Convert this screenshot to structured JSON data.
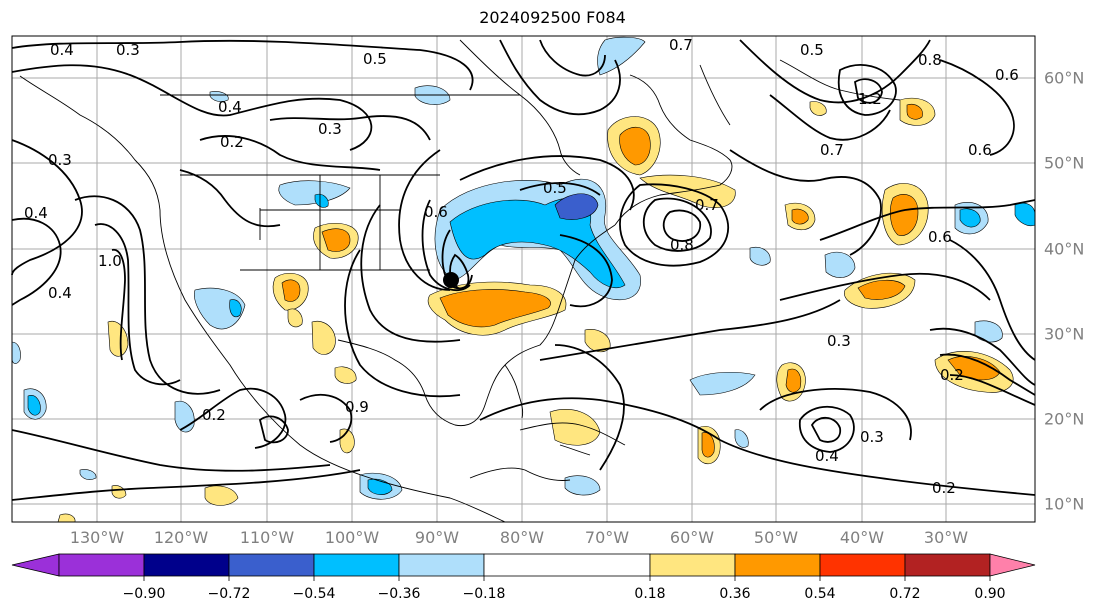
{
  "title": "2024092500 F084",
  "longitude_labels": [
    "130°W",
    "120°W",
    "110°W",
    "100°W",
    "90°W",
    "80°W",
    "70°W",
    "60°W",
    "50°W",
    "40°W",
    "30°W"
  ],
  "latitude_labels": [
    "60°N",
    "50°N",
    "40°N",
    "30°N",
    "20°N",
    "10°N"
  ],
  "contour_labels": [
    "0.4",
    "0.3",
    "0.5",
    "0.7",
    "0.5",
    "0.8",
    "0.6",
    "0.4",
    "0.2",
    "0.3",
    "1.2",
    "0.3",
    "0.7",
    "0.4",
    "1.0",
    "0.6",
    "0.5",
    "0.7",
    "0.8",
    "0.6",
    "0.4",
    "0.3",
    "0.2",
    "0.2",
    "0.3",
    "0.4",
    "0.2",
    "0.6",
    "0.9"
  ],
  "colorbar": {
    "tick_labels": [
      "−0.90",
      "−0.72",
      "−0.54",
      "−0.36",
      "−0.18",
      "0.18",
      "0.36",
      "0.54",
      "0.72",
      "0.90"
    ],
    "colors": [
      "#9b30d9",
      "#00008b",
      "#3a5fcd",
      "#00bfff",
      "#afdffb",
      "#ffffff",
      "#ffe680",
      "#ff9900",
      "#ff3300",
      "#b22222",
      "#ff80aa"
    ]
  },
  "shading_colors": {
    "light_blue": "#afdffb",
    "blue": "#00bfff",
    "medium_blue": "#3a5fcd",
    "light_yellow": "#ffe680",
    "orange": "#ff9900"
  }
}
